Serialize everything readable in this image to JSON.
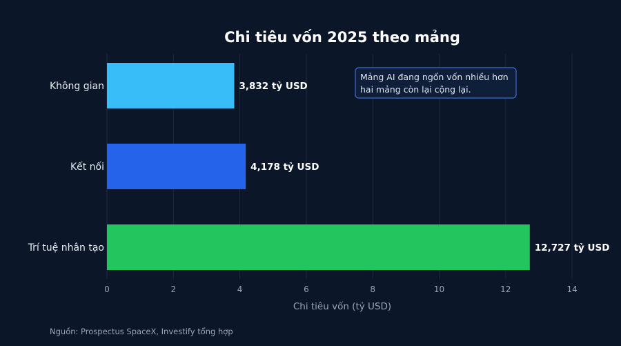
{
  "chart_data": {
    "type": "bar",
    "orientation": "horizontal",
    "title": "Chi tiêu vốn 2025 theo mảng",
    "categories": [
      "Không gian",
      "Kết nối",
      "Trí tuệ nhân tạo"
    ],
    "values": [
      3.832,
      4.178,
      12.727
    ],
    "value_labels": [
      "3,832 tỷ USD",
      "4,178 tỷ USD",
      "12,727 tỷ USD"
    ],
    "colors": [
      "#38bdf8",
      "#2563eb",
      "#22c55e"
    ],
    "xlabel": "Chi tiêu vốn (tỷ USD)",
    "ylabel": "",
    "xlim": [
      0,
      14.6
    ],
    "xticks": [
      0,
      2,
      4,
      6,
      8,
      10,
      12,
      14
    ],
    "grid": true,
    "annotation": {
      "lines": [
        "Mảng AI đang ngốn vốn nhiều hơn",
        "hai mảng còn lại cộng lại."
      ]
    }
  },
  "source": "Nguồn: Prospectus SpaceX, Investify tổng hợp",
  "style": {
    "background": "#0b1628",
    "grid_color": "#1f2c40",
    "annotation_border": "#3b6fd6",
    "annotation_fill": "#0f1f3a"
  }
}
